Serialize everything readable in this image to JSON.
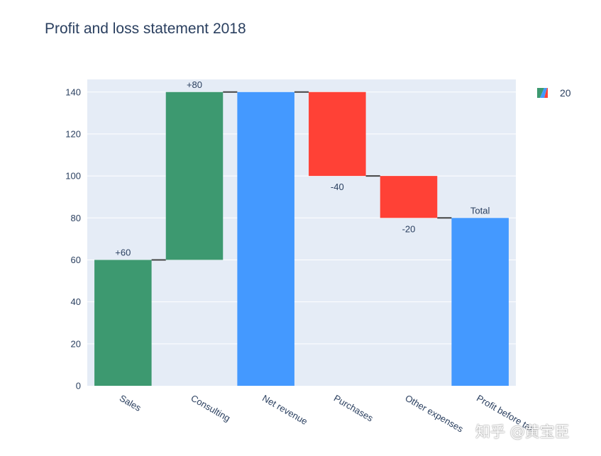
{
  "chart_data": {
    "type": "waterfall",
    "title": "Profit and loss statement 2018",
    "categories": [
      "Sales",
      "Consulting",
      "Net revenue",
      "Purchases",
      "Other expenses",
      "Profit before tax"
    ],
    "measures": [
      "relative",
      "relative",
      "total",
      "relative",
      "relative",
      "total"
    ],
    "values": [
      60,
      80,
      0,
      -40,
      -20,
      0
    ],
    "text_labels": [
      "+60",
      "+80",
      "",
      "-40",
      "-20",
      "Total"
    ],
    "ylim": [
      0,
      146
    ],
    "yticks": [
      "0",
      "20",
      "40",
      "60",
      "80",
      "100",
      "120",
      "140"
    ],
    "colors": {
      "increasing": "#3d9970",
      "decreasing": "#ff4136",
      "totals": "#4499ff",
      "connector": "#444444"
    },
    "legend": {
      "label": "20",
      "placement": "top-right"
    },
    "grid": true
  },
  "watermark": "知乎 @黄宝臣"
}
